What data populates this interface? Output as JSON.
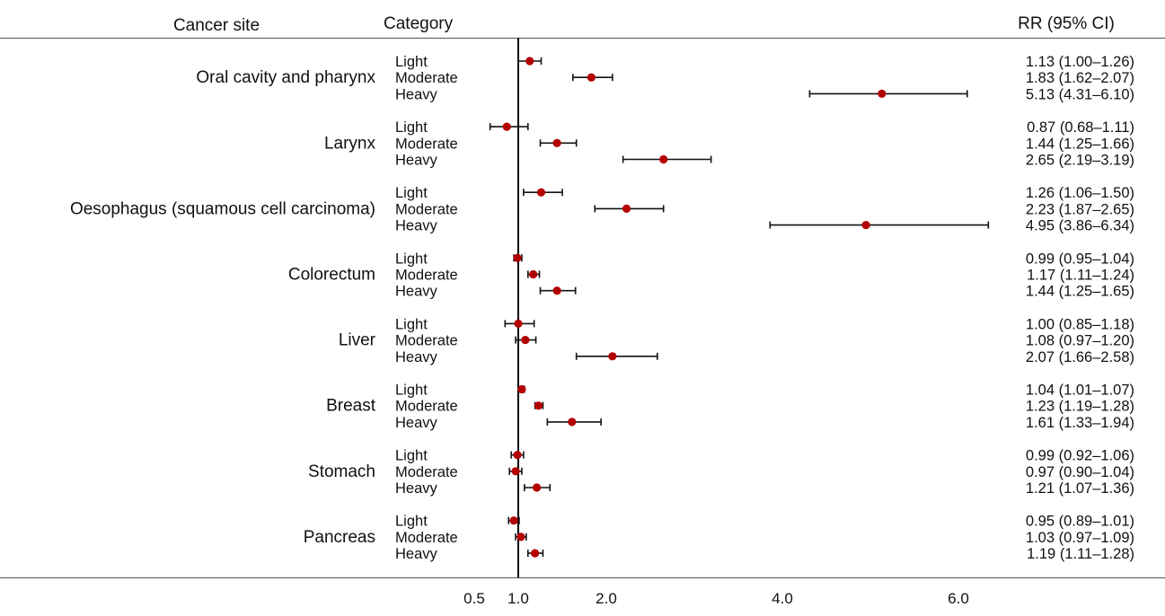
{
  "chart_data": {
    "type": "forest",
    "columns": {
      "site": "Cancer site",
      "category": "Category",
      "rr": "RR (95% CI)"
    },
    "x_ticks": [
      "0.5",
      "1.0",
      "2.0",
      "4.0",
      "6.0"
    ],
    "x_tick_values": [
      0.5,
      1.0,
      2.0,
      4.0,
      6.0
    ],
    "xlim": [
      0.5,
      6.0
    ],
    "reference_line": 1.0,
    "marker_color": "#b30000",
    "groups": [
      {
        "site": "Oral cavity and pharynx",
        "rows": [
          {
            "category": "Light",
            "rr": 1.13,
            "lo": 1.0,
            "hi": 1.26,
            "label": "1.13 (1.00–1.26)"
          },
          {
            "category": "Moderate",
            "rr": 1.83,
            "lo": 1.62,
            "hi": 2.07,
            "label": "1.83 (1.62–2.07)"
          },
          {
            "category": "Heavy",
            "rr": 5.13,
            "lo": 4.31,
            "hi": 6.1,
            "label": "5.13 (4.31–6.10)"
          }
        ]
      },
      {
        "site": "Larynx",
        "rows": [
          {
            "category": "Light",
            "rr": 0.87,
            "lo": 0.68,
            "hi": 1.11,
            "label": "0.87 (0.68–1.11)"
          },
          {
            "category": "Moderate",
            "rr": 1.44,
            "lo": 1.25,
            "hi": 1.66,
            "label": "1.44 (1.25–1.66)"
          },
          {
            "category": "Heavy",
            "rr": 2.65,
            "lo": 2.19,
            "hi": 3.19,
            "label": "2.65 (2.19–3.19)"
          }
        ]
      },
      {
        "site": "Oesophagus (squamous cell carcinoma)",
        "rows": [
          {
            "category": "Light",
            "rr": 1.26,
            "lo": 1.06,
            "hi": 1.5,
            "label": "1.26 (1.06–1.50)"
          },
          {
            "category": "Moderate",
            "rr": 2.23,
            "lo": 1.87,
            "hi": 2.65,
            "label": "2.23 (1.87–2.65)"
          },
          {
            "category": "Heavy",
            "rr": 4.95,
            "lo": 3.86,
            "hi": 6.34,
            "label": "4.95 (3.86–6.34)"
          }
        ]
      },
      {
        "site": "Colorectum",
        "rows": [
          {
            "category": "Light",
            "rr": 0.99,
            "lo": 0.95,
            "hi": 1.04,
            "label": "0.99 (0.95–1.04)"
          },
          {
            "category": "Moderate",
            "rr": 1.17,
            "lo": 1.11,
            "hi": 1.24,
            "label": "1.17 (1.11–1.24)"
          },
          {
            "category": "Heavy",
            "rr": 1.44,
            "lo": 1.25,
            "hi": 1.65,
            "label": "1.44 (1.25–1.65)"
          }
        ]
      },
      {
        "site": "Liver",
        "rows": [
          {
            "category": "Light",
            "rr": 1.0,
            "lo": 0.85,
            "hi": 1.18,
            "label": "1.00 (0.85–1.18)"
          },
          {
            "category": "Moderate",
            "rr": 1.08,
            "lo": 0.97,
            "hi": 1.2,
            "label": "1.08 (0.97–1.20)"
          },
          {
            "category": "Heavy",
            "rr": 2.07,
            "lo": 1.66,
            "hi": 2.58,
            "label": "2.07 (1.66–2.58)"
          }
        ]
      },
      {
        "site": "Breast",
        "rows": [
          {
            "category": "Light",
            "rr": 1.04,
            "lo": 1.01,
            "hi": 1.07,
            "label": "1.04 (1.01–1.07)"
          },
          {
            "category": "Moderate",
            "rr": 1.23,
            "lo": 1.19,
            "hi": 1.28,
            "label": "1.23 (1.19–1.28)"
          },
          {
            "category": "Heavy",
            "rr": 1.61,
            "lo": 1.33,
            "hi": 1.94,
            "label": "1.61 (1.33–1.94)"
          }
        ]
      },
      {
        "site": "Stomach",
        "rows": [
          {
            "category": "Light",
            "rr": 0.99,
            "lo": 0.92,
            "hi": 1.06,
            "label": "0.99 (0.92–1.06)"
          },
          {
            "category": "Moderate",
            "rr": 0.97,
            "lo": 0.9,
            "hi": 1.04,
            "label": "0.97 (0.90–1.04)"
          },
          {
            "category": "Heavy",
            "rr": 1.21,
            "lo": 1.07,
            "hi": 1.36,
            "label": "1.21 (1.07–1.36)"
          }
        ]
      },
      {
        "site": "Pancreas",
        "rows": [
          {
            "category": "Light",
            "rr": 0.95,
            "lo": 0.89,
            "hi": 1.01,
            "label": "0.95 (0.89–1.01)"
          },
          {
            "category": "Moderate",
            "rr": 1.03,
            "lo": 0.97,
            "hi": 1.09,
            "label": "1.03 (0.97–1.09)"
          },
          {
            "category": "Heavy",
            "rr": 1.19,
            "lo": 1.11,
            "hi": 1.28,
            "label": "1.19 (1.11–1.28)"
          }
        ]
      }
    ]
  }
}
